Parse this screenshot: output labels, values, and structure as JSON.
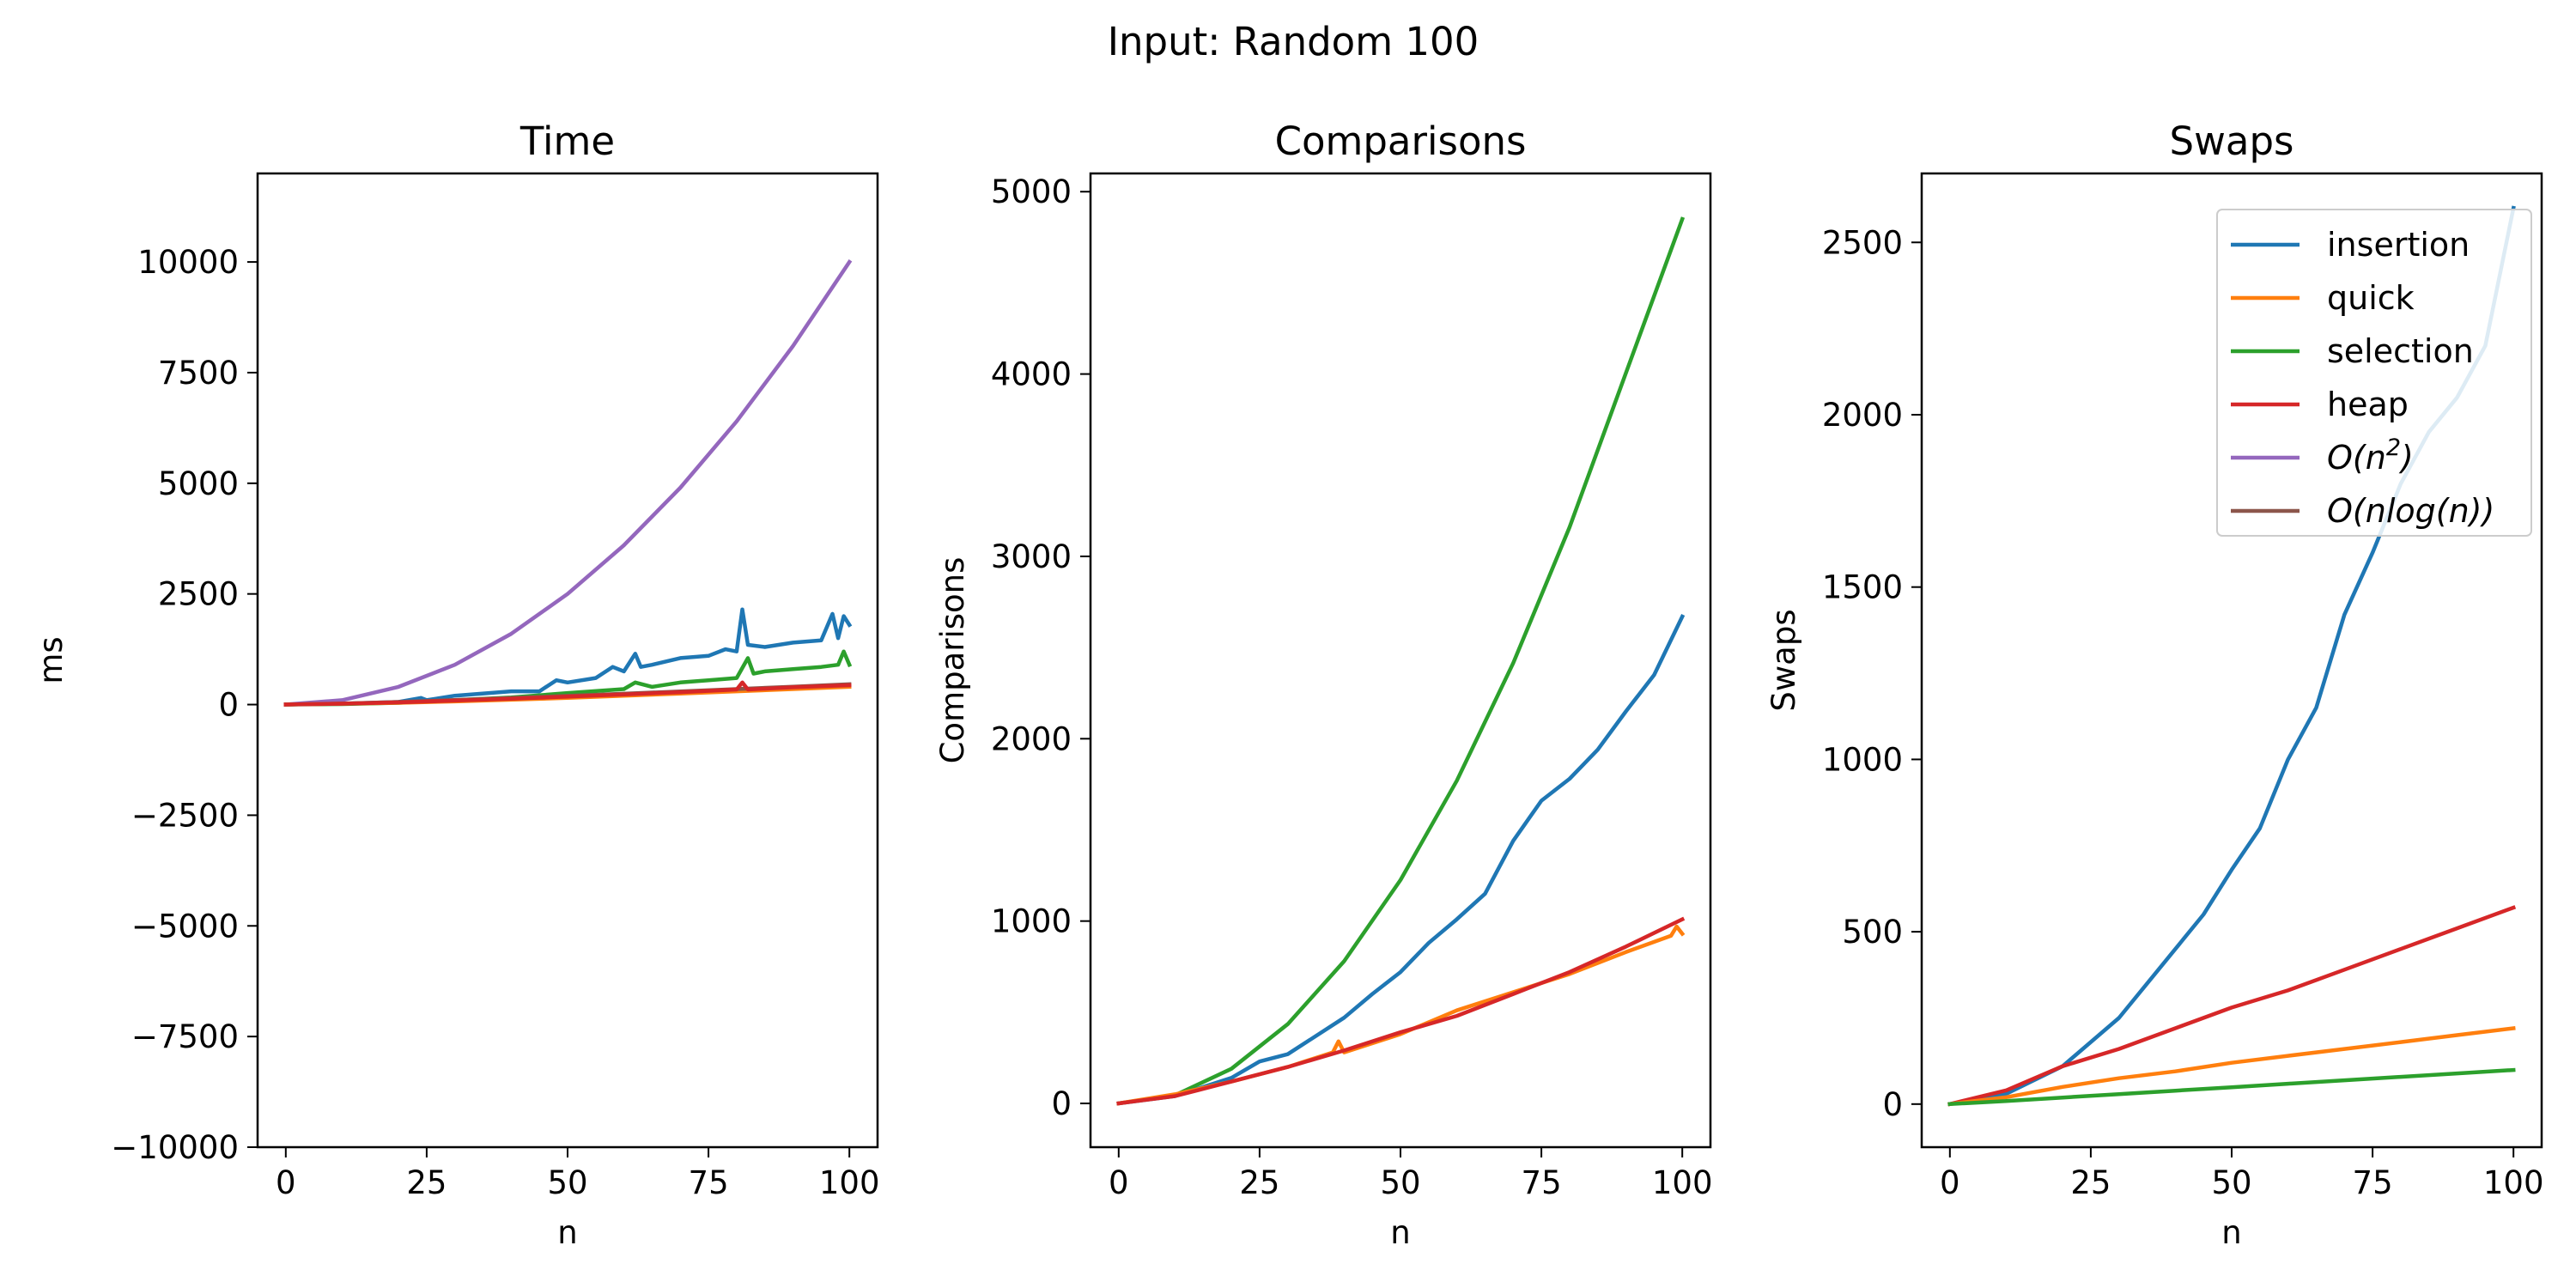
{
  "figure_title": "Input: Random 100",
  "colors": {
    "insertion": "#1f77b4",
    "quick": "#ff7f0e",
    "selection": "#2ca02c",
    "heap": "#d62728",
    "on2": "#9467bd",
    "onlogn": "#8c564b"
  },
  "legend": [
    {
      "series": "insertion",
      "label": "insertion",
      "color": "#1f77b4"
    },
    {
      "series": "quick",
      "label": "quick",
      "color": "#ff7f0e"
    },
    {
      "series": "selection",
      "label": "selection",
      "color": "#2ca02c"
    },
    {
      "series": "heap",
      "label": "heap",
      "color": "#d62728"
    },
    {
      "series": "on2",
      "label_parts": [
        "O(n",
        "2",
        ")"
      ],
      "color": "#9467bd"
    },
    {
      "series": "onlogn",
      "label": "O(nlog(n))",
      "color": "#8c564b"
    }
  ],
  "chart_data": [
    {
      "type": "line",
      "title": "Time",
      "xlabel": "n",
      "ylabel": "ms",
      "xlim": [
        -5,
        105
      ],
      "ylim": [
        -10000,
        12000
      ],
      "xticks": [
        0,
        25,
        50,
        75,
        100
      ],
      "yticks": [
        -10000,
        -7500,
        -5000,
        -2500,
        0,
        2500,
        5000,
        7500,
        10000
      ],
      "ytick_labels": [
        "−10000",
        "−7500",
        "−5000",
        "−2500",
        "0",
        "2500",
        "5000",
        "7500",
        "10000"
      ],
      "grid": false,
      "series": [
        {
          "key": "on2",
          "x": [
            0,
            10,
            20,
            30,
            40,
            50,
            60,
            70,
            80,
            90,
            100
          ],
          "y": [
            0,
            100,
            400,
            900,
            1600,
            2500,
            3600,
            4900,
            6400,
            8100,
            10000
          ]
        },
        {
          "key": "insertion",
          "x": [
            0,
            10,
            20,
            24,
            25,
            30,
            40,
            45,
            48,
            50,
            55,
            58,
            60,
            62,
            63,
            65,
            70,
            75,
            78,
            80,
            81,
            82,
            85,
            90,
            95,
            97,
            98,
            99,
            100
          ],
          "y": [
            0,
            20,
            60,
            150,
            100,
            200,
            300,
            300,
            550,
            500,
            600,
            850,
            750,
            1150,
            850,
            900,
            1050,
            1100,
            1250,
            1200,
            2150,
            1350,
            1300,
            1400,
            1450,
            2050,
            1500,
            2000,
            1800
          ]
        },
        {
          "key": "selection",
          "x": [
            0,
            10,
            20,
            30,
            40,
            50,
            60,
            62,
            65,
            70,
            75,
            80,
            82,
            83,
            85,
            90,
            95,
            98,
            99,
            100
          ],
          "y": [
            0,
            10,
            40,
            100,
            160,
            260,
            350,
            500,
            400,
            500,
            550,
            600,
            1050,
            700,
            750,
            800,
            850,
            900,
            1200,
            900
          ]
        },
        {
          "key": "quick",
          "x": [
            0,
            10,
            20,
            30,
            40,
            50,
            60,
            70,
            80,
            90,
            100
          ],
          "y": [
            0,
            20,
            40,
            70,
            110,
            150,
            200,
            250,
            300,
            350,
            400
          ]
        },
        {
          "key": "onlogn",
          "x": [
            0,
            10,
            20,
            30,
            40,
            50,
            60,
            70,
            80,
            90,
            100
          ],
          "y": [
            0,
            23,
            60,
            102,
            148,
            196,
            246,
            297,
            351,
            405,
            461
          ]
        },
        {
          "key": "heap",
          "x": [
            0,
            10,
            20,
            30,
            40,
            50,
            60,
            70,
            80,
            81,
            82,
            90,
            100
          ],
          "y": [
            0,
            20,
            50,
            90,
            130,
            180,
            230,
            280,
            340,
            500,
            340,
            390,
            440
          ]
        }
      ]
    },
    {
      "type": "line",
      "title": "Comparisons",
      "xlabel": "n",
      "ylabel": "Comparisons",
      "xlim": [
        -5,
        105
      ],
      "ylim": [
        -240,
        5100
      ],
      "xticks": [
        0,
        25,
        50,
        75,
        100
      ],
      "yticks": [
        0,
        1000,
        2000,
        3000,
        4000,
        5000
      ],
      "ytick_labels": [
        "0",
        "1000",
        "2000",
        "3000",
        "4000",
        "5000"
      ],
      "grid": false,
      "series": [
        {
          "key": "selection",
          "x": [
            0,
            10,
            20,
            30,
            40,
            50,
            60,
            70,
            80,
            90,
            100
          ],
          "y": [
            0,
            45,
            190,
            435,
            780,
            1225,
            1770,
            2415,
            3160,
            4005,
            4850
          ]
        },
        {
          "key": "insertion",
          "x": [
            0,
            10,
            20,
            25,
            30,
            35,
            40,
            45,
            50,
            55,
            60,
            65,
            70,
            75,
            80,
            85,
            90,
            95,
            100
          ],
          "y": [
            0,
            40,
            140,
            230,
            270,
            370,
            470,
            600,
            720,
            880,
            1010,
            1150,
            1440,
            1660,
            1780,
            1940,
            2150,
            2350,
            2670
          ]
        },
        {
          "key": "quick",
          "x": [
            0,
            10,
            20,
            30,
            38,
            39,
            40,
            50,
            60,
            70,
            80,
            90,
            98,
            99,
            100
          ],
          "y": [
            0,
            50,
            120,
            200,
            280,
            340,
            280,
            380,
            510,
            610,
            710,
            830,
            920,
            970,
            930
          ]
        },
        {
          "key": "heap",
          "x": [
            0,
            10,
            20,
            30,
            40,
            50,
            60,
            70,
            80,
            90,
            100
          ],
          "y": [
            0,
            40,
            120,
            200,
            290,
            390,
            480,
            600,
            720,
            860,
            1010
          ]
        }
      ]
    },
    {
      "type": "line",
      "title": "Swaps",
      "xlabel": "n",
      "ylabel": "Swaps",
      "xlim": [
        -5,
        105
      ],
      "ylim": [
        -125,
        2700
      ],
      "xticks": [
        0,
        25,
        50,
        75,
        100
      ],
      "yticks": [
        0,
        500,
        1000,
        1500,
        2000,
        2500
      ],
      "ytick_labels": [
        "0",
        "500",
        "1000",
        "1500",
        "2000",
        "2500"
      ],
      "grid": false,
      "legend_position": "upper right",
      "series": [
        {
          "key": "insertion",
          "x": [
            0,
            10,
            20,
            30,
            40,
            45,
            50,
            55,
            60,
            65,
            70,
            75,
            80,
            85,
            90,
            95,
            100
          ],
          "y": [
            0,
            30,
            110,
            250,
            450,
            550,
            680,
            800,
            1000,
            1150,
            1420,
            1600,
            1800,
            1950,
            2050,
            2200,
            2600
          ]
        },
        {
          "key": "heap",
          "x": [
            0,
            10,
            20,
            30,
            40,
            50,
            60,
            70,
            80,
            90,
            100
          ],
          "y": [
            0,
            40,
            110,
            160,
            220,
            280,
            330,
            390,
            450,
            510,
            570
          ]
        },
        {
          "key": "quick",
          "x": [
            0,
            10,
            20,
            30,
            40,
            50,
            60,
            70,
            80,
            90,
            100
          ],
          "y": [
            0,
            20,
            50,
            75,
            95,
            120,
            140,
            160,
            180,
            200,
            220
          ]
        },
        {
          "key": "selection",
          "x": [
            0,
            10,
            20,
            30,
            40,
            50,
            60,
            70,
            80,
            90,
            100
          ],
          "y": [
            0,
            9,
            19,
            29,
            39,
            49,
            59,
            69,
            79,
            89,
            99
          ]
        }
      ]
    }
  ]
}
